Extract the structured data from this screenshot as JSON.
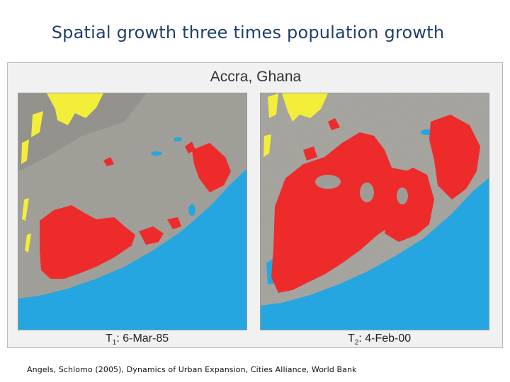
{
  "slide": {
    "title": "Spatial growth three times population growth",
    "source": "Angels, Schlomo (2005), Dynamics of Urban Expansion, Cities Alliance, World Bank"
  },
  "figure": {
    "title": "Accra, Ghana",
    "panels": [
      {
        "label_prefix": "T",
        "label_sub": "1",
        "label_text": ": 6-Mar-85"
      },
      {
        "label_prefix": "T",
        "label_sub": "2",
        "label_text": ": 4-Feb-00"
      }
    ]
  },
  "colors": {
    "title": "#1f3f6e",
    "sea": "#25a6e0",
    "urban": "#ee2b2b",
    "land": "#9a9a92",
    "hills": "#f2ee3a"
  }
}
